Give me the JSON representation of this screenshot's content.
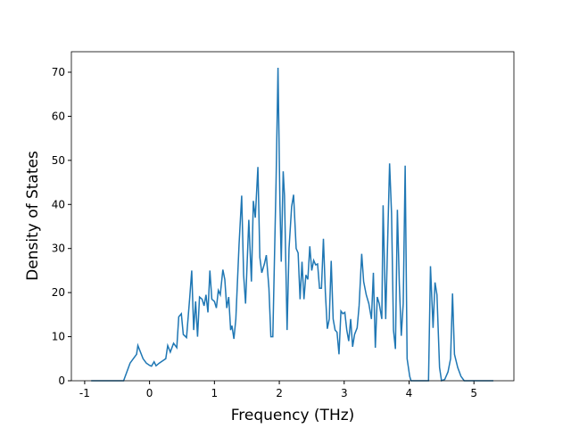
{
  "chart_data": {
    "type": "line",
    "x_label": "Frequency (THz)",
    "y_label": "Density of States",
    "x": [
      -0.9,
      -0.4,
      -0.3,
      -0.2,
      -0.18,
      -0.1,
      -0.05,
      0,
      0.03,
      0.07,
      0.1,
      0.15,
      0.2,
      0.25,
      0.28,
      0.32,
      0.37,
      0.42,
      0.45,
      0.49,
      0.52,
      0.57,
      0.62,
      0.65,
      0.68,
      0.71,
      0.74,
      0.77,
      0.81,
      0.84,
      0.87,
      0.9,
      0.93,
      0.96,
      1.0,
      1.03,
      1.06,
      1.09,
      1.13,
      1.16,
      1.19,
      1.22,
      1.25,
      1.27,
      1.3,
      1.33,
      1.38,
      1.42,
      1.45,
      1.48,
      1.53,
      1.57,
      1.6,
      1.63,
      1.67,
      1.7,
      1.73,
      1.77,
      1.8,
      1.84,
      1.87,
      1.9,
      1.95,
      1.98,
      2.01,
      2.03,
      2.06,
      2.08,
      2.12,
      2.15,
      2.19,
      2.22,
      2.26,
      2.29,
      2.32,
      2.35,
      2.38,
      2.41,
      2.44,
      2.47,
      2.5,
      2.53,
      2.56,
      2.59,
      2.62,
      2.65,
      2.68,
      2.71,
      2.74,
      2.77,
      2.8,
      2.83,
      2.86,
      2.89,
      2.92,
      2.95,
      2.98,
      3.01,
      3.04,
      3.07,
      3.1,
      3.13,
      3.16,
      3.2,
      3.23,
      3.27,
      3.3,
      3.34,
      3.38,
      3.42,
      3.45,
      3.48,
      3.51,
      3.54,
      3.58,
      3.6,
      3.64,
      3.7,
      3.73,
      3.76,
      3.79,
      3.82,
      3.85,
      3.88,
      3.91,
      3.94,
      3.97,
      4.01,
      4.03,
      4.3,
      4.33,
      4.37,
      4.4,
      4.43,
      4.47,
      4.5,
      4.55,
      4.6,
      4.64,
      4.67,
      4.7,
      4.75,
      4.8,
      4.85,
      5.3
    ],
    "series": [
      {
        "color": "#1f77b4",
        "values": [
          0,
          0,
          4,
          6,
          8,
          5,
          4,
          3.5,
          3.3,
          4.3,
          3.4,
          4,
          4.5,
          5,
          8,
          6.5,
          8.5,
          7.5,
          14.5,
          15.2,
          10.5,
          9.8,
          19,
          25,
          11.5,
          18,
          10,
          19,
          18.5,
          17,
          19.5,
          15.5,
          25,
          18.5,
          18,
          16.5,
          20.5,
          19.5,
          25.2,
          23,
          16.5,
          19,
          11.5,
          12.5,
          9.5,
          14,
          31,
          42,
          24,
          17.5,
          36.5,
          22.5,
          40.8,
          37,
          48.5,
          28,
          24.5,
          26.5,
          28.5,
          21,
          10,
          10,
          45,
          71,
          40,
          27,
          47.5,
          42,
          11.5,
          30,
          39.5,
          42.2,
          30,
          29,
          18.5,
          27,
          18.5,
          24,
          23,
          30.5,
          25,
          27.3,
          26.3,
          26.5,
          21,
          21,
          32.2,
          20,
          11.8,
          14,
          27.2,
          14,
          11.5,
          11,
          6,
          15.8,
          15.2,
          15.5,
          11.5,
          9,
          14,
          7.7,
          10.5,
          12,
          17,
          28.8,
          22.5,
          19.5,
          17.5,
          14,
          24.5,
          7.5,
          19,
          17.5,
          14,
          39.8,
          14,
          49.3,
          38,
          11.5,
          7.2,
          38.8,
          22,
          10.2,
          17.5,
          48.8,
          5,
          1,
          0,
          0,
          26,
          12,
          22.3,
          19.5,
          3,
          0,
          0.3,
          2,
          5,
          19.8,
          6,
          3,
          1,
          0,
          0
        ]
      }
    ],
    "xlim": [
      -1.205,
      5.616
    ],
    "ylim": [
      0,
      74.65
    ],
    "xticks": [
      -1,
      0,
      1,
      2,
      3,
      4,
      5
    ],
    "yticks": [
      0,
      10,
      20,
      30,
      40,
      50,
      60,
      70
    ]
  }
}
